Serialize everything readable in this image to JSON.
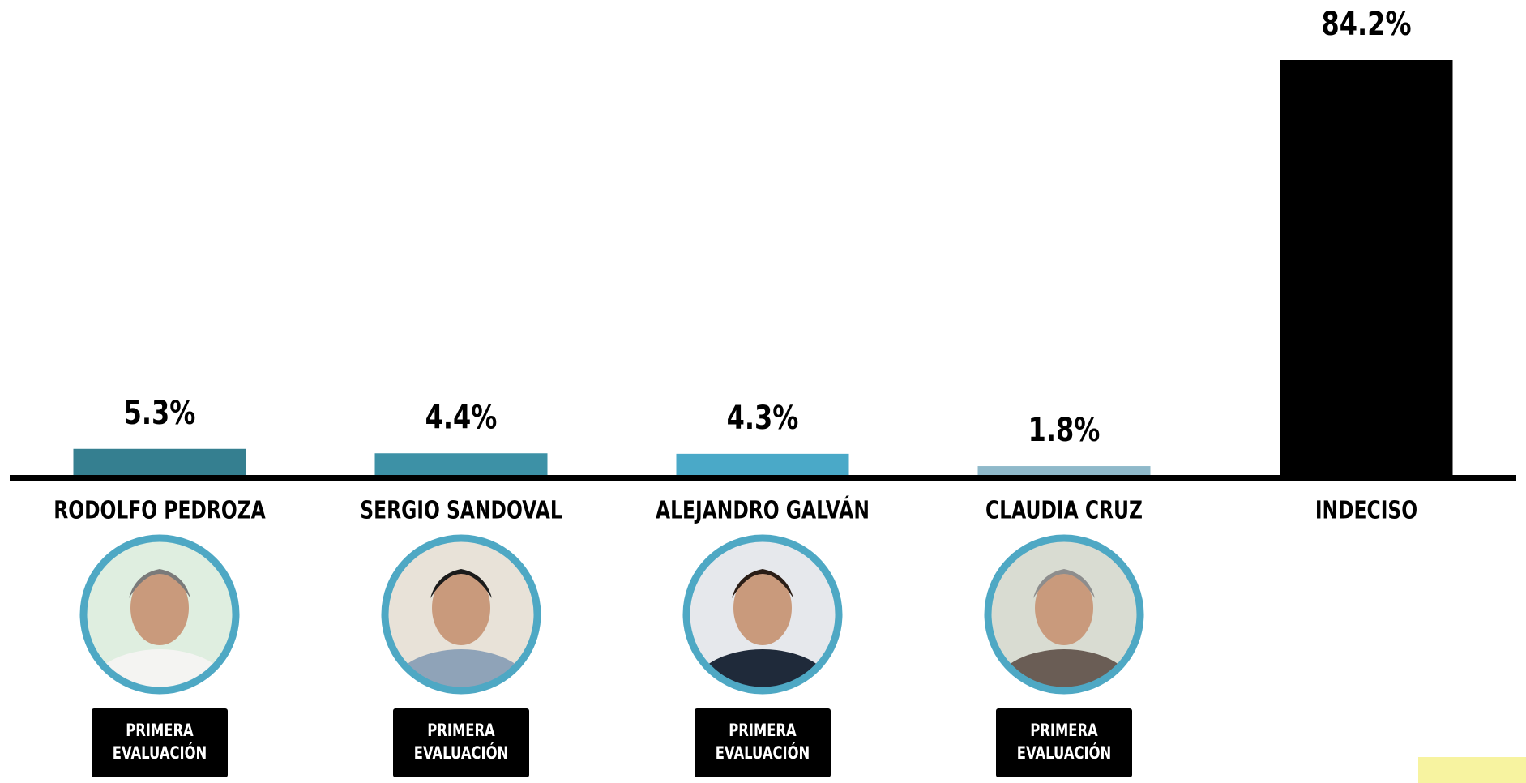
{
  "chart_data": {
    "type": "bar",
    "categories": [
      "RODOLFO PEDROZA",
      "SERGIO SANDOVAL",
      "ALEJANDRO GALVÁN",
      "CLAUDIA CRUZ",
      "INDECISO"
    ],
    "values": [
      5.3,
      4.4,
      4.3,
      1.8,
      84.2
    ],
    "value_labels": [
      "5.3%",
      "4.4%",
      "4.3%",
      "1.8%",
      "84.2%"
    ],
    "colors": [
      "#357f90",
      "#3d91a6",
      "#4aa9c8",
      "#8fb9ca",
      "#000000"
    ]
  },
  "badges": [
    [
      "PRIMERA",
      "EVALUACIÓN"
    ],
    [
      "PRIMERA",
      "EVALUACIÓN"
    ],
    [
      "PRIMERA",
      "EVALUACIÓN"
    ],
    [
      "PRIMERA",
      "EVALUACIÓN"
    ]
  ]
}
